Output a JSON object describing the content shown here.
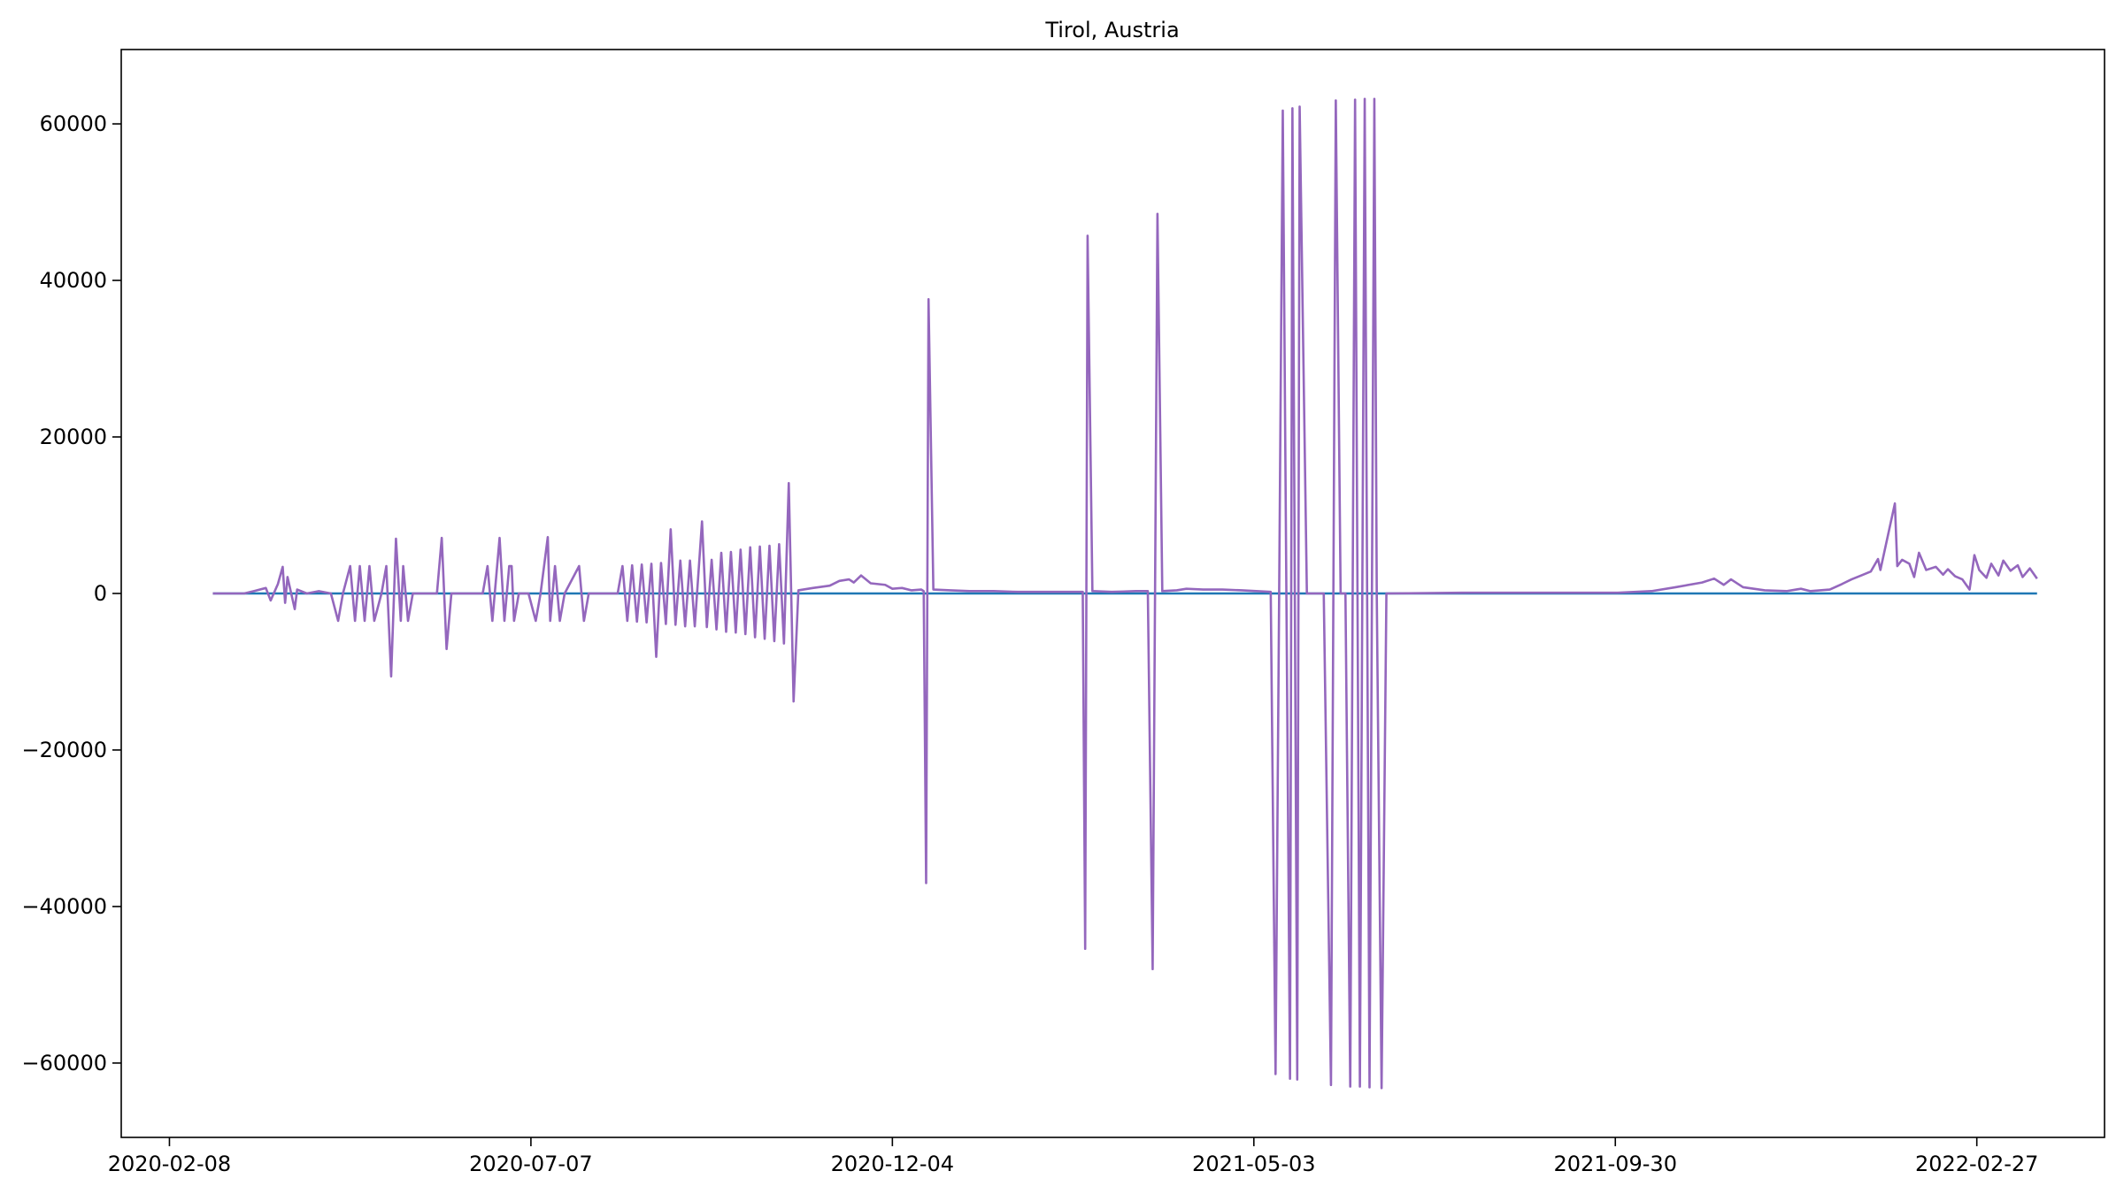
{
  "chart_data": {
    "type": "line",
    "title": "Tirol, Austria",
    "xlabel": "",
    "ylabel": "",
    "x_start": "2020-02-26",
    "x_end": "2022-03-24",
    "xlim": [
      "2020-01-19",
      "2022-04-21"
    ],
    "ylim": [
      -69500,
      69500
    ],
    "grid": false,
    "legend": "none",
    "x_ticks": [
      "2020-02-08",
      "2020-07-07",
      "2020-12-04",
      "2021-05-03",
      "2021-09-30",
      "2022-02-27"
    ],
    "y_ticks": [
      60000,
      40000,
      20000,
      0,
      -20000,
      -40000,
      -60000
    ],
    "y_tick_labels": [
      "60000",
      "40000",
      "20000",
      "0",
      "−20000",
      "−40000",
      "−60000"
    ],
    "series": [
      {
        "color": "#1f77b4",
        "points": [
          [
            "2020-02-26",
            0
          ],
          [
            "2022-03-24",
            0
          ]
        ]
      },
      {
        "color": "#9467bd",
        "points": [
          [
            "2020-02-26",
            0
          ],
          [
            "2020-03-10",
            0
          ],
          [
            "2020-03-14",
            300
          ],
          [
            "2020-03-19",
            700
          ],
          [
            "2020-03-21",
            -900
          ],
          [
            "2020-03-24",
            1200
          ],
          [
            "2020-03-26",
            3400
          ],
          [
            "2020-03-27",
            -1200
          ],
          [
            "2020-03-28",
            2100
          ],
          [
            "2020-03-31",
            -2000
          ],
          [
            "2020-04-01",
            500
          ],
          [
            "2020-04-05",
            0
          ],
          [
            "2020-04-10",
            300
          ],
          [
            "2020-04-15",
            0
          ],
          [
            "2020-04-18",
            -3500
          ],
          [
            "2020-04-20",
            0
          ],
          [
            "2020-04-23",
            3500
          ],
          [
            "2020-04-25",
            -3500
          ],
          [
            "2020-04-27",
            3500
          ],
          [
            "2020-04-29",
            -3500
          ],
          [
            "2020-05-01",
            3500
          ],
          [
            "2020-05-03",
            -3500
          ],
          [
            "2020-05-06",
            0
          ],
          [
            "2020-05-08",
            3500
          ],
          [
            "2020-05-10",
            -10600
          ],
          [
            "2020-05-12",
            7000
          ],
          [
            "2020-05-14",
            -3500
          ],
          [
            "2020-05-15",
            3500
          ],
          [
            "2020-05-17",
            -3500
          ],
          [
            "2020-05-19",
            0
          ],
          [
            "2020-05-29",
            0
          ],
          [
            "2020-05-31",
            7100
          ],
          [
            "2020-06-02",
            -7100
          ],
          [
            "2020-06-04",
            0
          ],
          [
            "2020-06-17",
            0
          ],
          [
            "2020-06-19",
            3500
          ],
          [
            "2020-06-21",
            -3500
          ],
          [
            "2020-06-24",
            7100
          ],
          [
            "2020-06-26",
            -3500
          ],
          [
            "2020-06-28",
            3500
          ],
          [
            "2020-06-29",
            3500
          ],
          [
            "2020-06-30",
            -3500
          ],
          [
            "2020-07-02",
            0
          ],
          [
            "2020-07-06",
            0
          ],
          [
            "2020-07-09",
            -3500
          ],
          [
            "2020-07-11",
            0
          ],
          [
            "2020-07-14",
            7200
          ],
          [
            "2020-07-15",
            -3500
          ],
          [
            "2020-07-17",
            3500
          ],
          [
            "2020-07-19",
            -3500
          ],
          [
            "2020-07-21",
            0
          ],
          [
            "2020-07-27",
            3500
          ],
          [
            "2020-07-29",
            -3500
          ],
          [
            "2020-07-31",
            0
          ],
          [
            "2020-08-12",
            0
          ],
          [
            "2020-08-14",
            3500
          ],
          [
            "2020-08-16",
            -3500
          ],
          [
            "2020-08-18",
            3600
          ],
          [
            "2020-08-20",
            -3600
          ],
          [
            "2020-08-22",
            3700
          ],
          [
            "2020-08-24",
            -3700
          ],
          [
            "2020-08-26",
            3800
          ],
          [
            "2020-08-28",
            -8100
          ],
          [
            "2020-08-30",
            3900
          ],
          [
            "2020-09-01",
            -3900
          ],
          [
            "2020-09-03",
            8200
          ],
          [
            "2020-09-05",
            -4000
          ],
          [
            "2020-09-07",
            4200
          ],
          [
            "2020-09-09",
            -4200
          ],
          [
            "2020-09-11",
            4200
          ],
          [
            "2020-09-13",
            -4200
          ],
          [
            "2020-09-16",
            9200
          ],
          [
            "2020-09-18",
            -4300
          ],
          [
            "2020-09-20",
            4300
          ],
          [
            "2020-09-22",
            -4600
          ],
          [
            "2020-09-24",
            5200
          ],
          [
            "2020-09-26",
            -4900
          ],
          [
            "2020-09-28",
            5300
          ],
          [
            "2020-09-30",
            -5000
          ],
          [
            "2020-10-02",
            5600
          ],
          [
            "2020-10-04",
            -5200
          ],
          [
            "2020-10-06",
            5900
          ],
          [
            "2020-10-08",
            -5600
          ],
          [
            "2020-10-10",
            6000
          ],
          [
            "2020-10-12",
            -5800
          ],
          [
            "2020-10-14",
            6100
          ],
          [
            "2020-10-16",
            -6100
          ],
          [
            "2020-10-18",
            6300
          ],
          [
            "2020-10-20",
            -6400
          ],
          [
            "2020-10-22",
            14100
          ],
          [
            "2020-10-24",
            -13800
          ],
          [
            "2020-10-26",
            400
          ],
          [
            "2020-11-01",
            700
          ],
          [
            "2020-11-08",
            1000
          ],
          [
            "2020-11-12",
            1600
          ],
          [
            "2020-11-16",
            1800
          ],
          [
            "2020-11-18",
            1400
          ],
          [
            "2020-11-21",
            2300
          ],
          [
            "2020-11-25",
            1300
          ],
          [
            "2020-12-01",
            1100
          ],
          [
            "2020-12-04",
            600
          ],
          [
            "2020-12-08",
            700
          ],
          [
            "2020-12-12",
            400
          ],
          [
            "2020-12-16",
            500
          ],
          [
            "2020-12-17",
            300
          ],
          [
            "2020-12-18",
            -37000
          ],
          [
            "2020-12-19",
            37600
          ],
          [
            "2020-12-21",
            500
          ],
          [
            "2020-12-28",
            400
          ],
          [
            "2021-01-05",
            300
          ],
          [
            "2021-01-15",
            300
          ],
          [
            "2021-01-25",
            200
          ],
          [
            "2021-02-05",
            200
          ],
          [
            "2021-02-15",
            200
          ],
          [
            "2021-02-21",
            200
          ],
          [
            "2021-02-22",
            -45400
          ],
          [
            "2021-02-23",
            45700
          ],
          [
            "2021-02-25",
            300
          ],
          [
            "2021-03-05",
            200
          ],
          [
            "2021-03-15",
            300
          ],
          [
            "2021-03-20",
            300
          ],
          [
            "2021-03-22",
            -48000
          ],
          [
            "2021-03-24",
            48500
          ],
          [
            "2021-03-26",
            300
          ],
          [
            "2021-04-01",
            400
          ],
          [
            "2021-04-05",
            600
          ],
          [
            "2021-04-12",
            500
          ],
          [
            "2021-04-20",
            500
          ],
          [
            "2021-04-28",
            400
          ],
          [
            "2021-05-04",
            300
          ],
          [
            "2021-05-10",
            200
          ],
          [
            "2021-05-12",
            -61400
          ],
          [
            "2021-05-15",
            61700
          ],
          [
            "2021-05-18",
            -62000
          ],
          [
            "2021-05-19",
            62000
          ],
          [
            "2021-05-21",
            -62100
          ],
          [
            "2021-05-22",
            62200
          ],
          [
            "2021-05-25",
            0
          ],
          [
            "2021-06-01",
            0
          ],
          [
            "2021-06-04",
            -62800
          ],
          [
            "2021-06-06",
            63000
          ],
          [
            "2021-06-08",
            0
          ],
          [
            "2021-06-10",
            0
          ],
          [
            "2021-06-12",
            -63000
          ],
          [
            "2021-06-14",
            63100
          ],
          [
            "2021-06-15",
            0
          ],
          [
            "2021-06-16",
            -63000
          ],
          [
            "2021-06-18",
            63200
          ],
          [
            "2021-06-20",
            -63100
          ],
          [
            "2021-06-22",
            63200
          ],
          [
            "2021-06-23",
            0
          ],
          [
            "2021-06-25",
            -63200
          ],
          [
            "2021-06-27",
            0
          ],
          [
            "2021-08-01",
            100
          ],
          [
            "2021-09-01",
            100
          ],
          [
            "2021-10-01",
            100
          ],
          [
            "2021-10-15",
            300
          ],
          [
            "2021-10-25",
            800
          ],
          [
            "2021-11-05",
            1400
          ],
          [
            "2021-11-10",
            1900
          ],
          [
            "2021-11-14",
            1100
          ],
          [
            "2021-11-17",
            1800
          ],
          [
            "2021-11-22",
            800
          ],
          [
            "2021-12-01",
            400
          ],
          [
            "2021-12-10",
            300
          ],
          [
            "2021-12-16",
            600
          ],
          [
            "2021-12-20",
            300
          ],
          [
            "2021-12-28",
            500
          ],
          [
            "2022-01-02",
            1200
          ],
          [
            "2022-01-06",
            1800
          ],
          [
            "2022-01-10",
            2300
          ],
          [
            "2022-01-14",
            2800
          ],
          [
            "2022-01-17",
            4400
          ],
          [
            "2022-01-18",
            3000
          ],
          [
            "2022-01-24",
            11500
          ],
          [
            "2022-01-25",
            3500
          ],
          [
            "2022-01-27",
            4300
          ],
          [
            "2022-01-30",
            3800
          ],
          [
            "2022-02-01",
            2100
          ],
          [
            "2022-02-03",
            5200
          ],
          [
            "2022-02-06",
            3000
          ],
          [
            "2022-02-10",
            3400
          ],
          [
            "2022-02-13",
            2400
          ],
          [
            "2022-02-15",
            3100
          ],
          [
            "2022-02-18",
            2200
          ],
          [
            "2022-02-21",
            1800
          ],
          [
            "2022-02-24",
            500
          ],
          [
            "2022-02-26",
            4900
          ],
          [
            "2022-02-28",
            3000
          ],
          [
            "2022-03-03",
            2000
          ],
          [
            "2022-03-05",
            3800
          ],
          [
            "2022-03-08",
            2300
          ],
          [
            "2022-03-10",
            4200
          ],
          [
            "2022-03-13",
            2900
          ],
          [
            "2022-03-16",
            3600
          ],
          [
            "2022-03-18",
            2100
          ],
          [
            "2022-03-21",
            3200
          ],
          [
            "2022-03-24",
            1900
          ]
        ]
      }
    ]
  }
}
